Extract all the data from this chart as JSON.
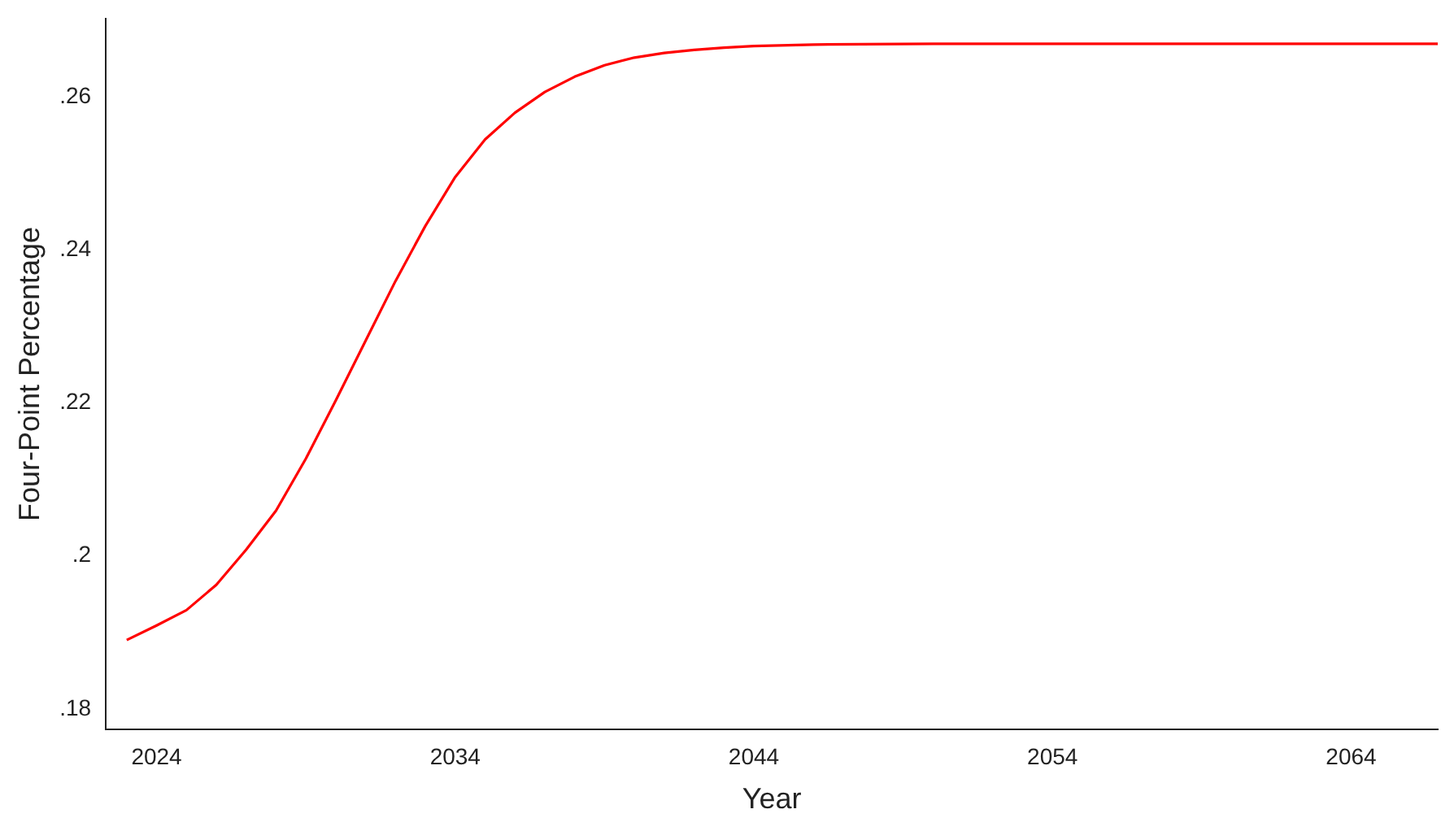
{
  "chart_data": {
    "type": "line",
    "xlabel": "Year",
    "ylabel": "Four-Point Percentage",
    "x": [
      2023,
      2024,
      2025,
      2026,
      2027,
      2028,
      2029,
      2030,
      2031,
      2032,
      2033,
      2034,
      2035,
      2036,
      2037,
      2038,
      2039,
      2040,
      2041,
      2042,
      2043,
      2044,
      2046,
      2050,
      2055,
      2060,
      2066.9
    ],
    "series": [
      {
        "color": "#ff0000",
        "values": [
          0.189,
          0.1909,
          0.1929,
          0.1962,
          0.2008,
          0.2059,
          0.2127,
          0.2203,
          0.2281,
          0.2359,
          0.2431,
          0.2495,
          0.2544,
          0.2579,
          0.2606,
          0.2626,
          0.2641,
          0.2651,
          0.2657,
          0.2661,
          0.2664,
          0.2666,
          0.2668,
          0.2669,
          0.2669,
          0.2669,
          0.2669
        ]
      }
    ],
    "xlim": [
      2022.3,
      2066.9
    ],
    "xticks": [
      2024,
      2034,
      2044,
      2054,
      2064
    ],
    "ylim": [
      0.1773,
      0.2702
    ],
    "yticks": [
      {
        "value": 0.18,
        "label": ".18"
      },
      {
        "value": 0.2,
        "label": ".2"
      },
      {
        "value": 0.22,
        "label": ".22"
      },
      {
        "value": 0.24,
        "label": ".24"
      },
      {
        "value": 0.26,
        "label": ".26"
      }
    ],
    "grid": false,
    "legend": false,
    "marker": "none",
    "line_style": "solid"
  }
}
